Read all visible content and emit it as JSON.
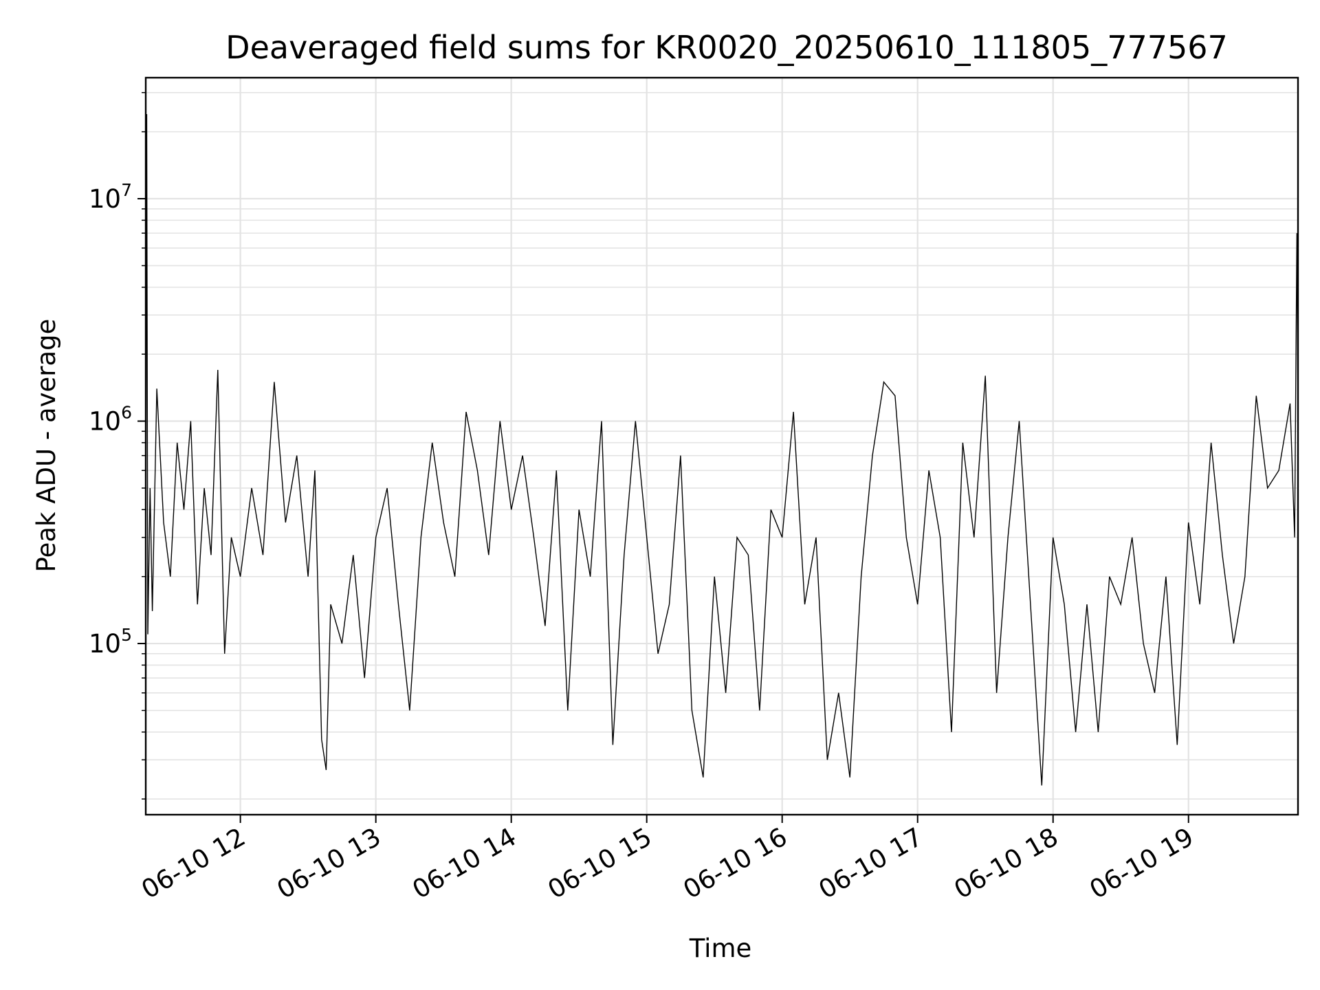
{
  "chart_data": {
    "type": "line",
    "title": "Deaveraged field sums for KR0020_20250610_111805_777567",
    "xlabel": "Time",
    "ylabel": "Peak ADU - average",
    "yscale": "log",
    "grid": true,
    "xlim": [
      "2025-06-10T11:18:05",
      "2025-06-10T19:48:30"
    ],
    "ylim": [
      17000,
      35000000
    ],
    "x_ticks": [
      {
        "label": "06-10 12",
        "value": "2025-06-10T12:00:00"
      },
      {
        "label": "06-10 13",
        "value": "2025-06-10T13:00:00"
      },
      {
        "label": "06-10 14",
        "value": "2025-06-10T14:00:00"
      },
      {
        "label": "06-10 15",
        "value": "2025-06-10T15:00:00"
      },
      {
        "label": "06-10 16",
        "value": "2025-06-10T16:00:00"
      },
      {
        "label": "06-10 17",
        "value": "2025-06-10T17:00:00"
      },
      {
        "label": "06-10 18",
        "value": "2025-06-10T18:00:00"
      },
      {
        "label": "06-10 19",
        "value": "2025-06-10T19:00:00"
      }
    ],
    "y_ticks": [
      {
        "base": "10",
        "exp": "5",
        "value": 100000
      },
      {
        "base": "10",
        "exp": "6",
        "value": 1000000
      },
      {
        "base": "10",
        "exp": "7",
        "value": 10000000
      }
    ],
    "series": [
      {
        "color": "#000000",
        "x": [
          "2025-06-10T11:18:05",
          "2025-06-10T11:18:30",
          "2025-06-10T11:19:00",
          "2025-06-10T11:20:00",
          "2025-06-10T11:21:00",
          "2025-06-10T11:23:00",
          "2025-06-10T11:26:00",
          "2025-06-10T11:29:00",
          "2025-06-10T11:32:00",
          "2025-06-10T11:35:00",
          "2025-06-10T11:38:00",
          "2025-06-10T11:41:00",
          "2025-06-10T11:44:00",
          "2025-06-10T11:47:00",
          "2025-06-10T11:50:00",
          "2025-06-10T11:53:00",
          "2025-06-10T11:56:00",
          "2025-06-10T12:00:00",
          "2025-06-10T12:05:00",
          "2025-06-10T12:10:00",
          "2025-06-10T12:15:00",
          "2025-06-10T12:20:00",
          "2025-06-10T12:25:00",
          "2025-06-10T12:30:00",
          "2025-06-10T12:33:00",
          "2025-06-10T12:36:00",
          "2025-06-10T12:38:00",
          "2025-06-10T12:40:00",
          "2025-06-10T12:45:00",
          "2025-06-10T12:50:00",
          "2025-06-10T12:55:00",
          "2025-06-10T13:00:00",
          "2025-06-10T13:05:00",
          "2025-06-10T13:10:00",
          "2025-06-10T13:15:00",
          "2025-06-10T13:20:00",
          "2025-06-10T13:25:00",
          "2025-06-10T13:30:00",
          "2025-06-10T13:35:00",
          "2025-06-10T13:40:00",
          "2025-06-10T13:45:00",
          "2025-06-10T13:50:00",
          "2025-06-10T13:55:00",
          "2025-06-10T14:00:00",
          "2025-06-10T14:05:00",
          "2025-06-10T14:10:00",
          "2025-06-10T14:15:00",
          "2025-06-10T14:20:00",
          "2025-06-10T14:25:00",
          "2025-06-10T14:30:00",
          "2025-06-10T14:35:00",
          "2025-06-10T14:40:00",
          "2025-06-10T14:45:00",
          "2025-06-10T14:50:00",
          "2025-06-10T14:55:00",
          "2025-06-10T15:00:00",
          "2025-06-10T15:05:00",
          "2025-06-10T15:10:00",
          "2025-06-10T15:15:00",
          "2025-06-10T15:20:00",
          "2025-06-10T15:25:00",
          "2025-06-10T15:30:00",
          "2025-06-10T15:35:00",
          "2025-06-10T15:40:00",
          "2025-06-10T15:45:00",
          "2025-06-10T15:50:00",
          "2025-06-10T15:55:00",
          "2025-06-10T16:00:00",
          "2025-06-10T16:05:00",
          "2025-06-10T16:10:00",
          "2025-06-10T16:15:00",
          "2025-06-10T16:20:00",
          "2025-06-10T16:25:00",
          "2025-06-10T16:30:00",
          "2025-06-10T16:35:00",
          "2025-06-10T16:40:00",
          "2025-06-10T16:45:00",
          "2025-06-10T16:50:00",
          "2025-06-10T16:55:00",
          "2025-06-10T17:00:00",
          "2025-06-10T17:05:00",
          "2025-06-10T17:10:00",
          "2025-06-10T17:15:00",
          "2025-06-10T17:20:00",
          "2025-06-10T17:25:00",
          "2025-06-10T17:30:00",
          "2025-06-10T17:35:00",
          "2025-06-10T17:40:00",
          "2025-06-10T17:45:00",
          "2025-06-10T17:50:00",
          "2025-06-10T17:55:00",
          "2025-06-10T18:00:00",
          "2025-06-10T18:05:00",
          "2025-06-10T18:10:00",
          "2025-06-10T18:15:00",
          "2025-06-10T18:20:00",
          "2025-06-10T18:25:00",
          "2025-06-10T18:30:00",
          "2025-06-10T18:35:00",
          "2025-06-10T18:40:00",
          "2025-06-10T18:45:00",
          "2025-06-10T18:50:00",
          "2025-06-10T18:55:00",
          "2025-06-10T19:00:00",
          "2025-06-10T19:05:00",
          "2025-06-10T19:10:00",
          "2025-06-10T19:15:00",
          "2025-06-10T19:20:00",
          "2025-06-10T19:25:00",
          "2025-06-10T19:30:00",
          "2025-06-10T19:35:00",
          "2025-06-10T19:40:00",
          "2025-06-10T19:45:00",
          "2025-06-10T19:47:00",
          "2025-06-10T19:48:00",
          "2025-06-10T19:48:30"
        ],
        "y": [
          250000,
          24000000,
          110000,
          500000,
          140000,
          1400000,
          350000,
          200000,
          800000,
          400000,
          1000000,
          150000,
          500000,
          250000,
          1700000,
          90000,
          300000,
          200000,
          500000,
          250000,
          1500000,
          350000,
          700000,
          200000,
          600000,
          37000,
          27000,
          150000,
          100000,
          250000,
          70000,
          300000,
          500000,
          150000,
          50000,
          300000,
          800000,
          350000,
          200000,
          1100000,
          600000,
          250000,
          1000000,
          400000,
          700000,
          300000,
          120000,
          600000,
          50000,
          400000,
          200000,
          1000000,
          35000,
          250000,
          1000000,
          300000,
          90000,
          150000,
          700000,
          50000,
          25000,
          200000,
          60000,
          300000,
          250000,
          50000,
          400000,
          300000,
          1100000,
          150000,
          300000,
          30000,
          60000,
          25000,
          200000,
          700000,
          1500000,
          1300000,
          300000,
          150000,
          600000,
          300000,
          40000,
          800000,
          300000,
          1600000,
          60000,
          300000,
          1000000,
          150000,
          23000,
          300000,
          150000,
          40000,
          150000,
          40000,
          200000,
          150000,
          300000,
          100000,
          60000,
          200000,
          35000,
          350000,
          150000,
          800000,
          250000,
          100000,
          200000,
          1300000,
          500000,
          600000,
          1200000,
          300000,
          7000000,
          1000000
        ]
      }
    ]
  }
}
